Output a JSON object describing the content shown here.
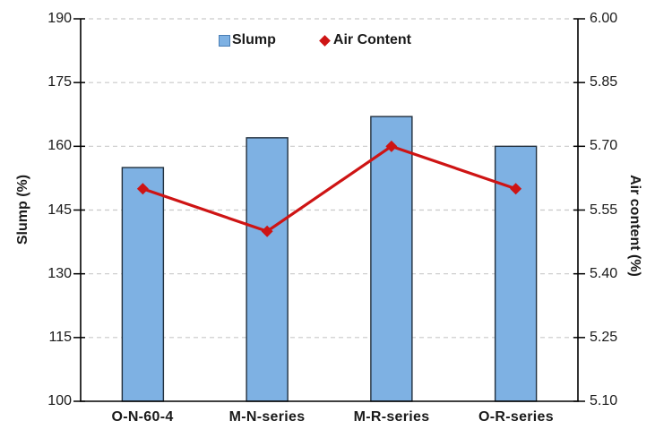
{
  "chart_data": {
    "type": "bar",
    "subtype": "bar-line-combo",
    "title": "",
    "categories": [
      "O-N-60-4",
      "M-N-series",
      "M-R-series",
      "O-R-series"
    ],
    "series": [
      {
        "name": "Slump",
        "type": "bar",
        "axis": "left",
        "values": [
          155,
          162,
          167,
          160
        ],
        "color": "#7EB1E3",
        "border_color": "#22303e"
      },
      {
        "name": "Air Content",
        "type": "line",
        "axis": "right",
        "values": [
          5.6,
          5.5,
          5.7,
          5.6
        ],
        "color": "#CE1414",
        "marker": "diamond"
      }
    ],
    "left_axis": {
      "label": "Slump (%)",
      "min": 100,
      "max": 190,
      "step": 15,
      "tick_labels": [
        "190",
        "175",
        "160",
        "145",
        "130",
        "115",
        "100"
      ]
    },
    "right_axis": {
      "label": "Air content (%)",
      "min": 5.1,
      "max": 6.0,
      "step": 0.15,
      "tick_labels": [
        "6.00",
        "5.85",
        "5.70",
        "5.55",
        "5.40",
        "5.25",
        "5.10"
      ]
    },
    "grid": "on",
    "grid_color": "#c9c9c9",
    "axis_color": "#000000",
    "legend_position": "top-center"
  }
}
